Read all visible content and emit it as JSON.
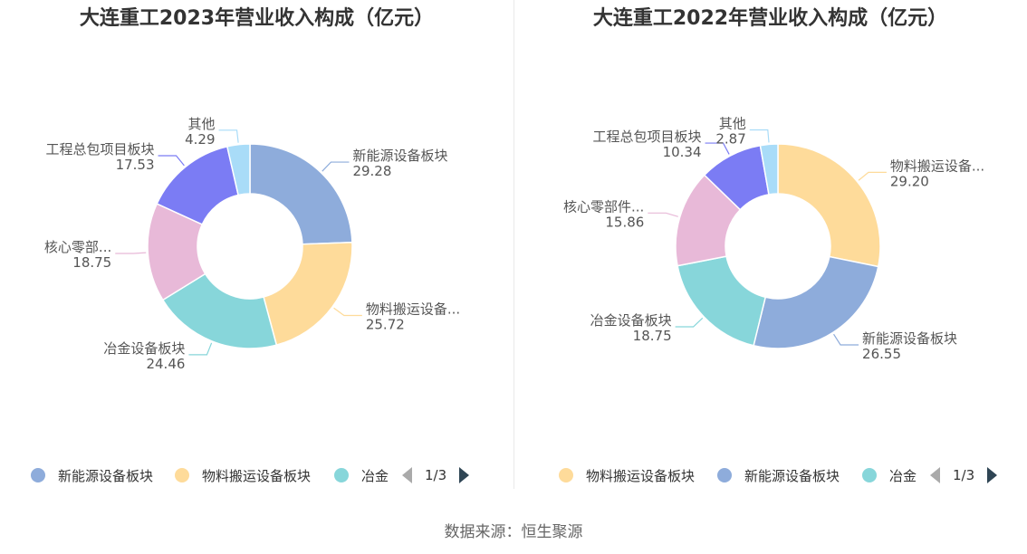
{
  "chart_data": [
    {
      "type": "pie",
      "title": "大连重工2023年营业收入构成（亿元）",
      "series": [
        {
          "name": "新能源设备板块",
          "label": "新能源设备板块",
          "value": 29.28,
          "value_label": "29.28",
          "color": "#8eacdb"
        },
        {
          "name": "物料搬运设备板块",
          "label": "物料搬运设备...",
          "value": 25.72,
          "value_label": "25.72",
          "color": "#fedb9a"
        },
        {
          "name": "冶金设备板块",
          "label": "冶金设备板块",
          "value": 24.46,
          "value_label": "24.46",
          "color": "#87d6da"
        },
        {
          "name": "核心零部件板块",
          "label": "核心零部...",
          "value": 18.75,
          "value_label": "18.75",
          "color": "#e8b9d8"
        },
        {
          "name": "工程总包项目板块",
          "label": "工程总包项目板块",
          "value": 17.53,
          "value_label": "17.53",
          "color": "#7b7cf4"
        },
        {
          "name": "其他",
          "label": "其他",
          "value": 4.29,
          "value_label": "4.29",
          "color": "#a9dcf8"
        }
      ],
      "legend": {
        "items": [
          {
            "label": "新能源设备板块",
            "color": "#8eacdb"
          },
          {
            "label": "物料搬运设备板块",
            "color": "#fedb9a"
          },
          {
            "label": "冶金",
            "color": "#87d6da"
          }
        ],
        "page": "1/3",
        "placement": "bottom"
      }
    },
    {
      "type": "pie",
      "title": "大连重工2022年营业收入构成（亿元）",
      "series": [
        {
          "name": "物料搬运设备板块",
          "label": "物料搬运设备...",
          "value": 29.2,
          "value_label": "29.20",
          "color": "#fedb9a"
        },
        {
          "name": "新能源设备板块",
          "label": "新能源设备板块",
          "value": 26.55,
          "value_label": "26.55",
          "color": "#8eacdb"
        },
        {
          "name": "冶金设备板块",
          "label": "冶金设备板块",
          "value": 18.75,
          "value_label": "18.75",
          "color": "#87d6da"
        },
        {
          "name": "核心零部件板块",
          "label": "核心零部件...",
          "value": 15.86,
          "value_label": "15.86",
          "color": "#e8b9d8"
        },
        {
          "name": "工程总包项目板块",
          "label": "工程总包项目板块",
          "value": 10.34,
          "value_label": "10.34",
          "color": "#7b7cf4"
        },
        {
          "name": "其他",
          "label": "其他",
          "value": 2.87,
          "value_label": "2.87",
          "color": "#a9dcf8"
        }
      ],
      "legend": {
        "items": [
          {
            "label": "物料搬运设备板块",
            "color": "#fedb9a"
          },
          {
            "label": "新能源设备板块",
            "color": "#8eacdb"
          },
          {
            "label": "冶金",
            "color": "#87d6da"
          }
        ],
        "page": "1/3",
        "placement": "bottom"
      }
    }
  ],
  "source": "数据来源：恒生聚源"
}
